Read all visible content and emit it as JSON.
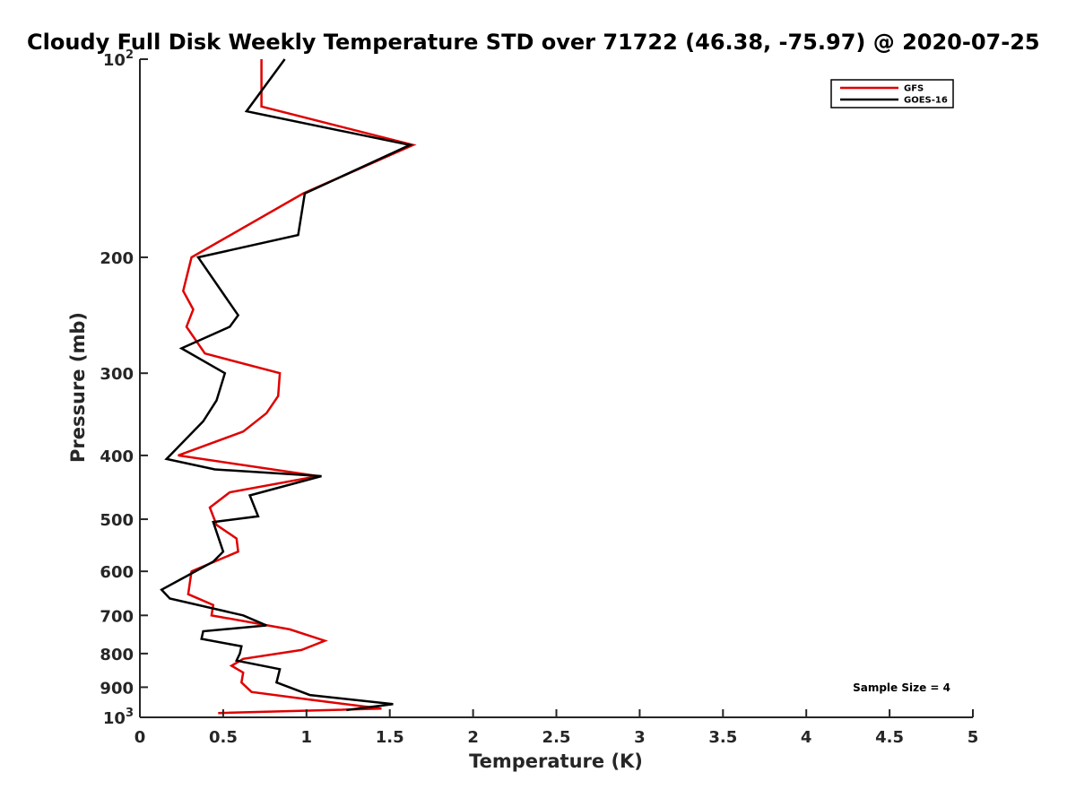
{
  "chart_data": {
    "type": "line",
    "title": "Cloudy Full Disk Weekly Temperature STD over 71722 (46.38, -75.97) @ 2020-07-25",
    "xlabel": "Temperature (K)",
    "ylabel": "Pressure (mb)",
    "xlim": [
      0,
      5
    ],
    "ylim": [
      1000,
      100
    ],
    "yscale": "log",
    "x_ticks": [
      0,
      0.5,
      1,
      1.5,
      2,
      2.5,
      3,
      3.5,
      4,
      4.5,
      5
    ],
    "x_tick_labels": [
      "0",
      "0.5",
      "1",
      "1.5",
      "2",
      "2.5",
      "3",
      "3.5",
      "4",
      "4.5",
      "5"
    ],
    "y_ticks": [
      100,
      200,
      300,
      400,
      500,
      600,
      700,
      800,
      900,
      1000
    ],
    "y_tick_labels": [
      {
        "base": "10",
        "exp": "2"
      },
      {
        "base": "200",
        "exp": ""
      },
      {
        "base": "300",
        "exp": ""
      },
      {
        "base": "400",
        "exp": ""
      },
      {
        "base": "500",
        "exp": ""
      },
      {
        "base": "600",
        "exp": ""
      },
      {
        "base": "700",
        "exp": ""
      },
      {
        "base": "800",
        "exp": ""
      },
      {
        "base": "900",
        "exp": ""
      },
      {
        "base": "10",
        "exp": "3"
      }
    ],
    "grid": false,
    "legend_position": "top-right",
    "annotation": "Sample Size = 4",
    "series": [
      {
        "name": "GFS",
        "color": "#e00000",
        "x": [
          0.73,
          0.73,
          1.64,
          0.98,
          0.31,
          0.26,
          0.32,
          0.28,
          0.39,
          0.84,
          0.83,
          0.76,
          0.62,
          0.23,
          1.07,
          0.54,
          0.42,
          0.46,
          0.58,
          0.59,
          0.31,
          0.3,
          0.29,
          0.44,
          0.43,
          0.9,
          1.11,
          0.97,
          0.62,
          0.55,
          0.62,
          0.61,
          0.67,
          1.02,
          1.45,
          0.47
        ],
        "y": [
          100,
          118,
          135,
          160,
          200,
          225,
          240,
          255,
          280,
          300,
          325,
          345,
          368,
          400,
          430,
          455,
          480,
          510,
          535,
          560,
          600,
          625,
          650,
          675,
          700,
          735,
          765,
          790,
          815,
          835,
          855,
          885,
          915,
          940,
          970,
          985
        ]
      },
      {
        "name": "GOES-16",
        "color": "#000000",
        "x": [
          0.87,
          0.64,
          1.62,
          0.99,
          0.95,
          0.35,
          0.59,
          0.54,
          0.25,
          0.51,
          0.46,
          0.38,
          0.16,
          0.45,
          1.09,
          0.66,
          0.71,
          0.44,
          0.5,
          0.44,
          0.23,
          0.13,
          0.18,
          0.62,
          0.76,
          0.38,
          0.37,
          0.61,
          0.6,
          0.58,
          0.84,
          0.82,
          1.02,
          1.52,
          1.24
        ],
        "y": [
          100,
          120,
          135,
          160,
          185,
          200,
          245,
          255,
          275,
          300,
          330,
          355,
          405,
          420,
          430,
          460,
          495,
          505,
          560,
          580,
          620,
          640,
          660,
          700,
          725,
          740,
          760,
          780,
          800,
          820,
          845,
          885,
          925,
          955,
          975
        ]
      }
    ]
  }
}
